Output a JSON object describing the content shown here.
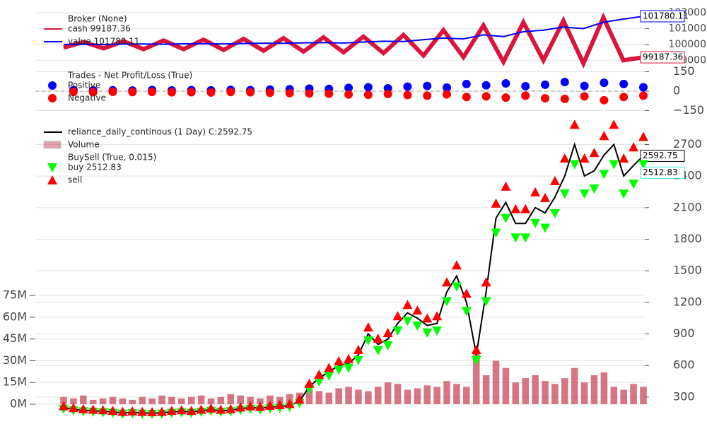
{
  "chart_data": [
    {
      "type": "line",
      "ylim": [
        98700,
        102270
      ],
      "yticks": [
        99000,
        100000,
        101000,
        102000
      ],
      "grid": true,
      "series": [
        {
          "group": "Broker (None)",
          "name": "cash 99187.36",
          "color": "#dc143c",
          "marker": "line",
          "end_label": true,
          "values": [
            99800,
            100150,
            99750,
            100200,
            99700,
            100250,
            99700,
            100300,
            99650,
            100350,
            99600,
            100400,
            99550,
            100450,
            99500,
            100500,
            99450,
            100600,
            99300,
            100900,
            99200,
            101200,
            98900,
            101400,
            99000,
            101500,
            98800,
            101700,
            99000,
            99187.36
          ]
        },
        {
          "name": "value 101780.11",
          "color": "#0000ff",
          "marker": "line",
          "end_label": true,
          "values": [
            100000,
            100010,
            99990,
            100020,
            100030,
            100010,
            100040,
            100050,
            100030,
            100060,
            100080,
            100070,
            100100,
            100120,
            100090,
            100150,
            100200,
            100180,
            100300,
            100400,
            100350,
            100600,
            100500,
            100800,
            100900,
            101100,
            101000,
            101400,
            101600,
            101780.11
          ]
        }
      ]
    },
    {
      "type": "scatter",
      "ylim": [
        -213,
        213
      ],
      "yticks": [
        150,
        0,
        {
          "value": -150,
          "label": "−150"
        }
      ],
      "grid": true,
      "hline": 0,
      "xlim": [
        0,
        59
      ],
      "x": [
        1,
        3,
        5,
        7,
        9,
        11,
        13,
        15,
        17,
        19,
        21,
        23,
        25,
        27,
        29,
        31,
        33,
        35,
        37,
        39,
        41,
        43,
        45,
        47,
        49,
        51,
        53,
        55,
        57,
        59
      ],
      "series": [
        {
          "group": "Trades - Net Profit/Loss (True)",
          "name": "Positive",
          "color": "#0000ff",
          "marker": "o",
          "values": [
            8,
            6,
            7,
            5,
            9,
            6,
            8,
            7,
            10,
            8,
            12,
            15,
            20,
            18,
            25,
            30,
            22,
            35,
            40,
            28,
            55,
            45,
            60,
            38,
            50,
            70,
            40,
            65,
            55,
            30
          ]
        },
        {
          "name": "Negative",
          "color": "#ff0000",
          "marker": "o",
          "values": [
            -6,
            -8,
            -5,
            -7,
            -6,
            -9,
            -8,
            -10,
            -7,
            -9,
            -12,
            -15,
            -18,
            -20,
            -25,
            -28,
            -22,
            -30,
            -35,
            -25,
            -45,
            -40,
            -50,
            -35,
            -55,
            -60,
            -40,
            -70,
            -45,
            -35
          ]
        }
      ]
    },
    {
      "type": "line",
      "ylim": [
        232,
        2918
      ],
      "yticks": [
        300,
        600,
        900,
        1200,
        1500,
        1800,
        2100,
        2400,
        2700
      ],
      "grid": true,
      "y2lim": [
        0,
        195
      ],
      "y2ticks": [
        {
          "value": 0,
          "label": "0M"
        },
        {
          "value": 15,
          "label": "15M"
        },
        {
          "value": 30,
          "label": "30M"
        },
        {
          "value": 45,
          "label": "45M"
        },
        {
          "value": 60,
          "label": "60M"
        },
        {
          "value": 75,
          "label": "75M"
        }
      ],
      "series": [
        {
          "name": "reliance_daily_continous (1 Day) C:2592.75",
          "color": "#000000",
          "marker": "line",
          "end_label": true,
          "values": [
            200,
            185,
            175,
            170,
            165,
            160,
            150,
            155,
            150,
            148,
            150,
            160,
            165,
            160,
            170,
            180,
            170,
            175,
            190,
            200,
            195,
            205,
            210,
            220,
            260,
            400,
            480,
            540,
            600,
            620,
            700,
            900,
            800,
            850,
            1000,
            1100,
            1050,
            980,
            1000,
            1300,
            1450,
            1200,
            700,
            1300,
            2000,
            2150,
            1950,
            1950,
            2100,
            2050,
            2200,
            2400,
            2700,
            2400,
            2450,
            2600,
            2700,
            2400,
            2500,
            2592.75
          ]
        },
        {
          "name": "Volume",
          "color": "#c8485a",
          "marker": "bar",
          "axis": "y2",
          "values": [
            5,
            4,
            6,
            3,
            4,
            5,
            4,
            3,
            5,
            4,
            6,
            5,
            4,
            5,
            6,
            4,
            5,
            7,
            6,
            5,
            4,
            6,
            5,
            7,
            8,
            10,
            9,
            8,
            11,
            12,
            10,
            9,
            12,
            15,
            14,
            10,
            11,
            13,
            12,
            16,
            14,
            12,
            35,
            20,
            30,
            25,
            15,
            18,
            20,
            16,
            14,
            18,
            25,
            15,
            20,
            22,
            12,
            10,
            14,
            12
          ]
        },
        {
          "group": "BuySell (True, 0.015)",
          "name": "buy 2512.83",
          "color": "#00ff00",
          "marker": "^",
          "end_label": true,
          "values": [
            186,
            172,
            163,
            158,
            153,
            149,
            140,
            144,
            140,
            138,
            140,
            149,
            153,
            149,
            158,
            167,
            158,
            163,
            177,
            186,
            181,
            191,
            195,
            205,
            242,
            372,
            446,
            502,
            558,
            577,
            651,
            837,
            744,
            791,
            930,
            1023,
            977,
            911,
            930,
            1209,
            1349,
            1116,
            651,
            1209,
            1860,
            2000,
            1814,
            1814,
            1953,
            1907,
            2046,
            2232,
            2511,
            2232,
            2279,
            2418,
            2511,
            2232,
            2325,
            2512.83
          ]
        },
        {
          "name": "sell",
          "color": "#ff0000",
          "marker": "v",
          "values": [
            214,
            198,
            187,
            182,
            177,
            171,
            161,
            166,
            161,
            158,
            161,
            171,
            177,
            171,
            182,
            193,
            182,
            187,
            203,
            214,
            209,
            219,
            225,
            235,
            278,
            428,
            514,
            578,
            642,
            663,
            749,
            963,
            856,
            910,
            1070,
            1177,
            1124,
            1049,
            1070,
            1391,
            1552,
            1284,
            749,
            1391,
            2140,
            2301,
            2087,
            2087,
            2247,
            2194,
            2354,
            2568,
            2889,
            2568,
            2622,
            2782,
            2889,
            2568,
            2675,
            2774
          ]
        }
      ]
    }
  ]
}
